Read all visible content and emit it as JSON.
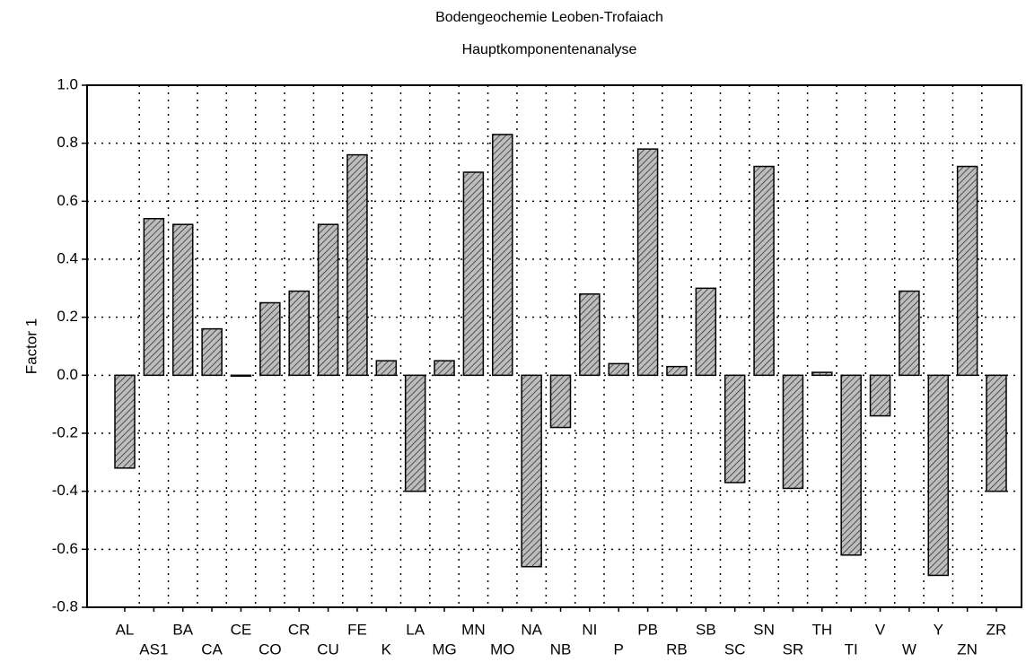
{
  "chart_data": {
    "type": "bar",
    "title": "Bodengeochemie Leoben-Trofaiach",
    "subtitle": "Hauptkomponentenanalyse",
    "y_label": "Factor 1",
    "categories": [
      "AL",
      "AS1",
      "BA",
      "CA",
      "CE",
      "CO",
      "CR",
      "CU",
      "FE",
      "K",
      "LA",
      "MG",
      "MN",
      "MO",
      "NA",
      "NB",
      "NI",
      "P",
      "PB",
      "RB",
      "SB",
      "SC",
      "SN",
      "SR",
      "TH",
      "TI",
      "V",
      "W",
      "Y",
      "ZN",
      "ZR"
    ],
    "values": [
      -0.32,
      0.54,
      0.52,
      0.16,
      0.0,
      0.25,
      0.29,
      0.52,
      0.76,
      0.05,
      -0.4,
      0.05,
      0.7,
      0.83,
      -0.66,
      -0.18,
      0.28,
      0.04,
      0.78,
      0.03,
      0.3,
      -0.37,
      0.72,
      -0.39,
      0.01,
      -0.62,
      -0.14,
      0.29,
      -0.69,
      0.72,
      -0.4
    ],
    "color": "#9a9a9a",
    "ylim": [
      -0.8,
      1.0
    ],
    "yticks": [
      -0.8,
      -0.6,
      -0.4,
      -0.2,
      {
        "value": 0,
        "label": "0.0"
      },
      0.2,
      0.4,
      0.6,
      0.8,
      {
        "value": 1,
        "label": "1.0"
      }
    ],
    "grid": true
  }
}
